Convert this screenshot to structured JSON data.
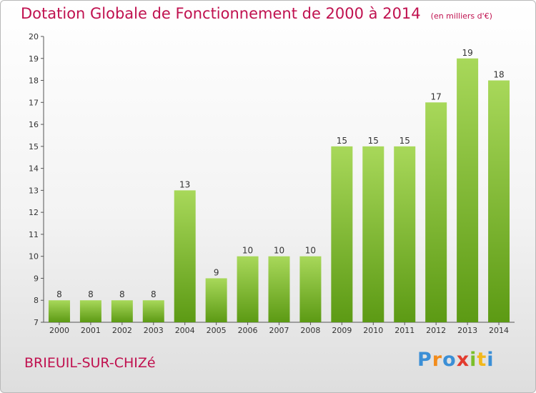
{
  "chart_data": {
    "type": "bar",
    "title": "Dotation Globale de Fonctionnement de 2000 à 2014",
    "subtitle": "(en milliers d'€)",
    "categories": [
      "2000",
      "2001",
      "2002",
      "2003",
      "2004",
      "2005",
      "2006",
      "2007",
      "2008",
      "2009",
      "2010",
      "2011",
      "2012",
      "2013",
      "2014"
    ],
    "values": [
      8,
      8,
      8,
      8,
      13,
      9,
      10,
      10,
      10,
      15,
      15,
      15,
      17,
      19,
      18
    ],
    "ylim": [
      7,
      20
    ],
    "yticks": [
      7,
      8,
      9,
      10,
      11,
      12,
      13,
      14,
      15,
      16,
      17,
      18,
      19,
      20
    ],
    "grid": false,
    "data_labels": true,
    "colors": {
      "bar_top": "#a8d85a",
      "bar_bottom": "#5c9a14",
      "title": "#c0114f"
    }
  },
  "footer": {
    "commune": "BRIEUIL-SUR-CHIZé",
    "logo_letters": [
      {
        "ch": "P",
        "color": "#3b8fd6"
      },
      {
        "ch": "r",
        "color": "#f28c1c"
      },
      {
        "ch": "o",
        "color": "#3b8fd6"
      },
      {
        "ch": "x",
        "color": "#e23b2e"
      },
      {
        "ch": "i",
        "color": "#7bbf2a"
      },
      {
        "ch": "t",
        "color": "#f2b81c"
      },
      {
        "ch": "i",
        "color": "#3b8fd6"
      }
    ]
  }
}
